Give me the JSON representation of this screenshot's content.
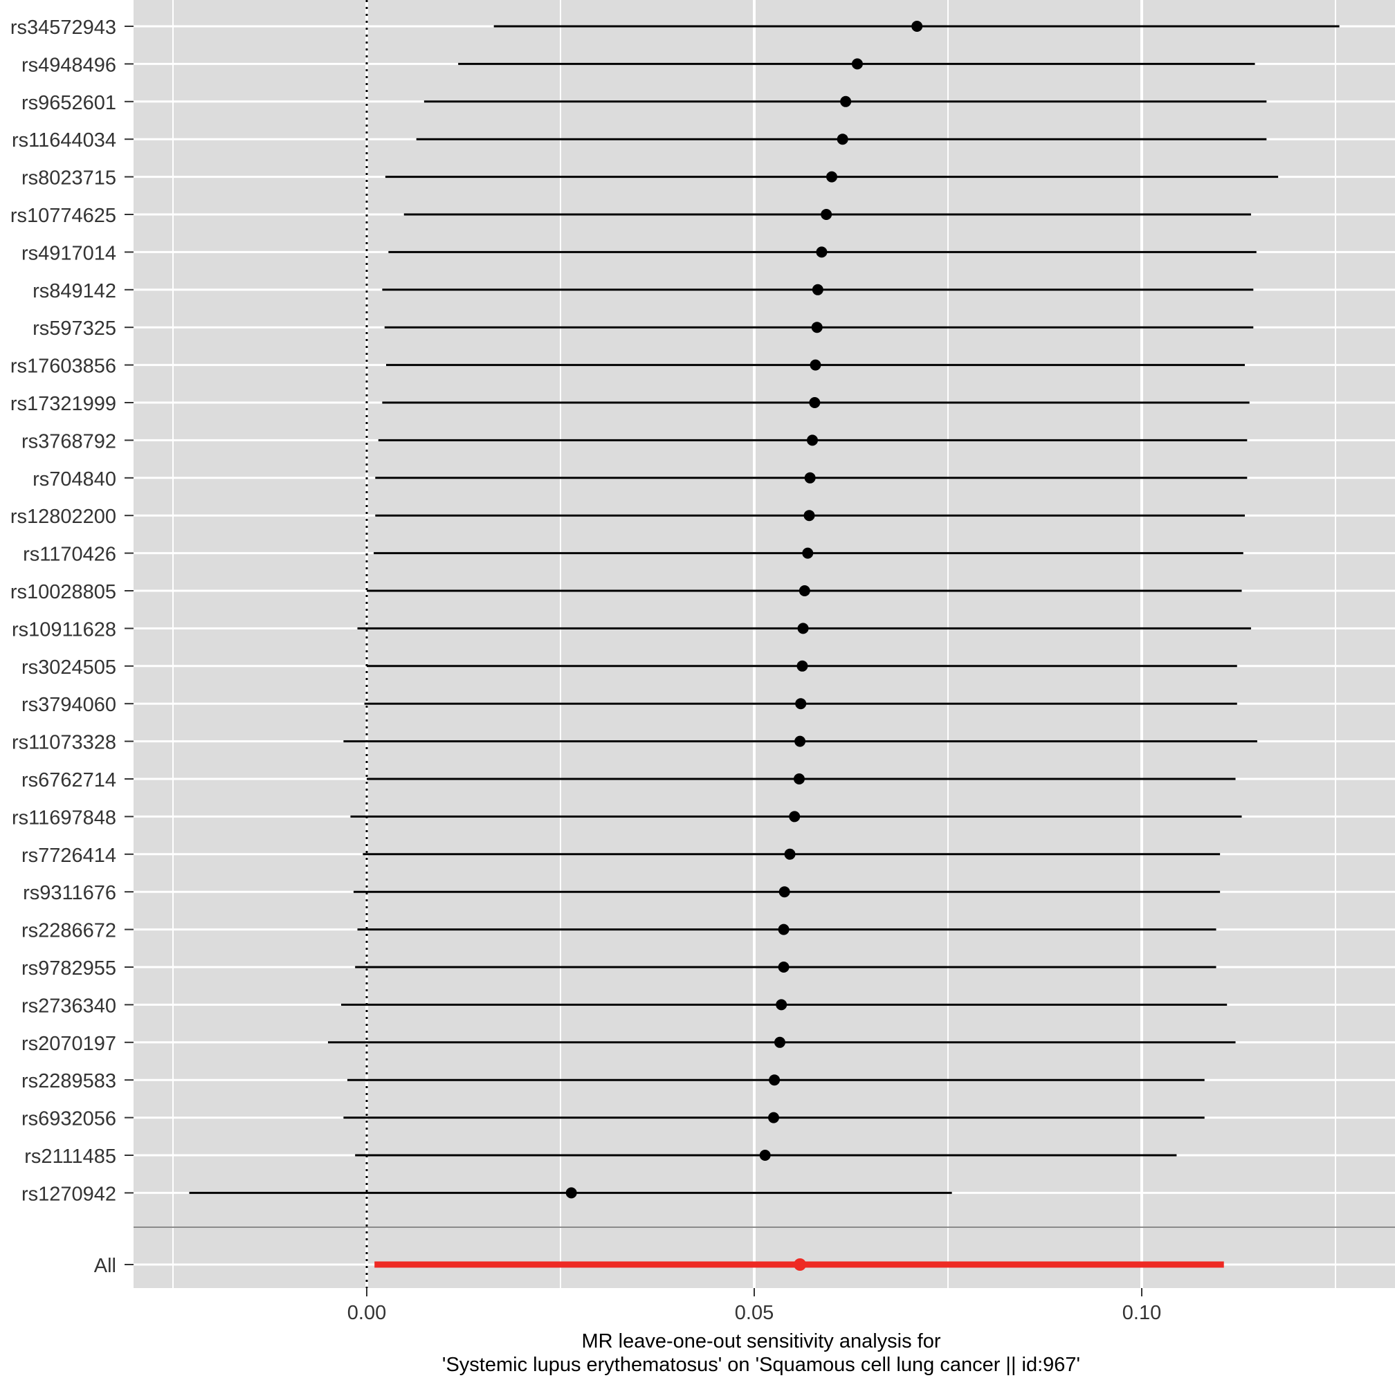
{
  "chart_data": {
    "type": "forest",
    "title": "",
    "xlabel_lines": [
      "MR leave-one-out sensitivity analysis for",
      "'Systemic lupus erythematosus' on 'Squamous cell lung cancer || id:967'"
    ],
    "ylabel": "",
    "xlim": [
      -0.03,
      0.133
    ],
    "x_ticks": [
      0.0,
      0.05,
      0.1
    ],
    "x_tick_labels": [
      "0.00",
      "0.05",
      "0.10"
    ],
    "x_minor_ticks": [
      -0.025,
      0.025,
      0.075,
      0.125
    ],
    "reference_line": 0,
    "grid": true,
    "background_color": "#dcdcdc",
    "grid_color": "#ffffff",
    "point_color": "#000000",
    "overall_color": "#ee2a24",
    "series": [
      {
        "name": "rs34572943",
        "estimate": 0.071,
        "lower": 0.0164,
        "upper": 0.1255
      },
      {
        "name": "rs4948496",
        "estimate": 0.0633,
        "lower": 0.0118,
        "upper": 0.1146
      },
      {
        "name": "rs9652601",
        "estimate": 0.0618,
        "lower": 0.0074,
        "upper": 0.1161
      },
      {
        "name": "rs11644034",
        "estimate": 0.0614,
        "lower": 0.0064,
        "upper": 0.1161
      },
      {
        "name": "rs8023715",
        "estimate": 0.06,
        "lower": 0.0024,
        "upper": 0.1176
      },
      {
        "name": "rs10774625",
        "estimate": 0.0593,
        "lower": 0.0048,
        "upper": 0.1141
      },
      {
        "name": "rs4917014",
        "estimate": 0.0587,
        "lower": 0.0028,
        "upper": 0.1148
      },
      {
        "name": "rs849142",
        "estimate": 0.0582,
        "lower": 0.002,
        "upper": 0.1144
      },
      {
        "name": "rs597325",
        "estimate": 0.0581,
        "lower": 0.0023,
        "upper": 0.1144
      },
      {
        "name": "rs17603856",
        "estimate": 0.0579,
        "lower": 0.0025,
        "upper": 0.1133
      },
      {
        "name": "rs17321999",
        "estimate": 0.0578,
        "lower": 0.002,
        "upper": 0.1139
      },
      {
        "name": "rs3768792",
        "estimate": 0.0575,
        "lower": 0.0015,
        "upper": 0.1136
      },
      {
        "name": "rs704840",
        "estimate": 0.0572,
        "lower": 0.0011,
        "upper": 0.1136
      },
      {
        "name": "rs12802200",
        "estimate": 0.0571,
        "lower": 0.0011,
        "upper": 0.1133
      },
      {
        "name": "rs1170426",
        "estimate": 0.0569,
        "lower": 0.0009,
        "upper": 0.1131
      },
      {
        "name": "rs10028805",
        "estimate": 0.0565,
        "lower": 0.0,
        "upper": 0.1129
      },
      {
        "name": "rs10911628",
        "estimate": 0.0563,
        "lower": -0.0012,
        "upper": 0.1141
      },
      {
        "name": "rs3024505",
        "estimate": 0.0562,
        "lower": 0.0,
        "upper": 0.1123
      },
      {
        "name": "rs3794060",
        "estimate": 0.056,
        "lower": -0.0003,
        "upper": 0.1123
      },
      {
        "name": "rs11073328",
        "estimate": 0.0559,
        "lower": -0.003,
        "upper": 0.1149
      },
      {
        "name": "rs6762714",
        "estimate": 0.0558,
        "lower": 0.0,
        "upper": 0.1121
      },
      {
        "name": "rs11697848",
        "estimate": 0.0552,
        "lower": -0.0021,
        "upper": 0.1129
      },
      {
        "name": "rs7726414",
        "estimate": 0.0546,
        "lower": -0.0005,
        "upper": 0.1101
      },
      {
        "name": "rs9311676",
        "estimate": 0.0539,
        "lower": -0.0017,
        "upper": 0.1101
      },
      {
        "name": "rs2286672",
        "estimate": 0.0538,
        "lower": -0.0012,
        "upper": 0.1096
      },
      {
        "name": "rs9782955",
        "estimate": 0.0538,
        "lower": -0.0015,
        "upper": 0.1096
      },
      {
        "name": "rs2736340",
        "estimate": 0.0535,
        "lower": -0.0033,
        "upper": 0.111
      },
      {
        "name": "rs2070197",
        "estimate": 0.0533,
        "lower": -0.005,
        "upper": 0.1121
      },
      {
        "name": "rs2289583",
        "estimate": 0.0526,
        "lower": -0.0025,
        "upper": 0.1081
      },
      {
        "name": "rs6932056",
        "estimate": 0.0525,
        "lower": -0.003,
        "upper": 0.1081
      },
      {
        "name": "rs2111485",
        "estimate": 0.0514,
        "lower": -0.0015,
        "upper": 0.1045
      },
      {
        "name": "rs1270942",
        "estimate": 0.0264,
        "lower": -0.0229,
        "upper": 0.0755
      }
    ],
    "overall": {
      "name": "All",
      "estimate": 0.0559,
      "lower": 0.001,
      "upper": 0.1106
    }
  }
}
